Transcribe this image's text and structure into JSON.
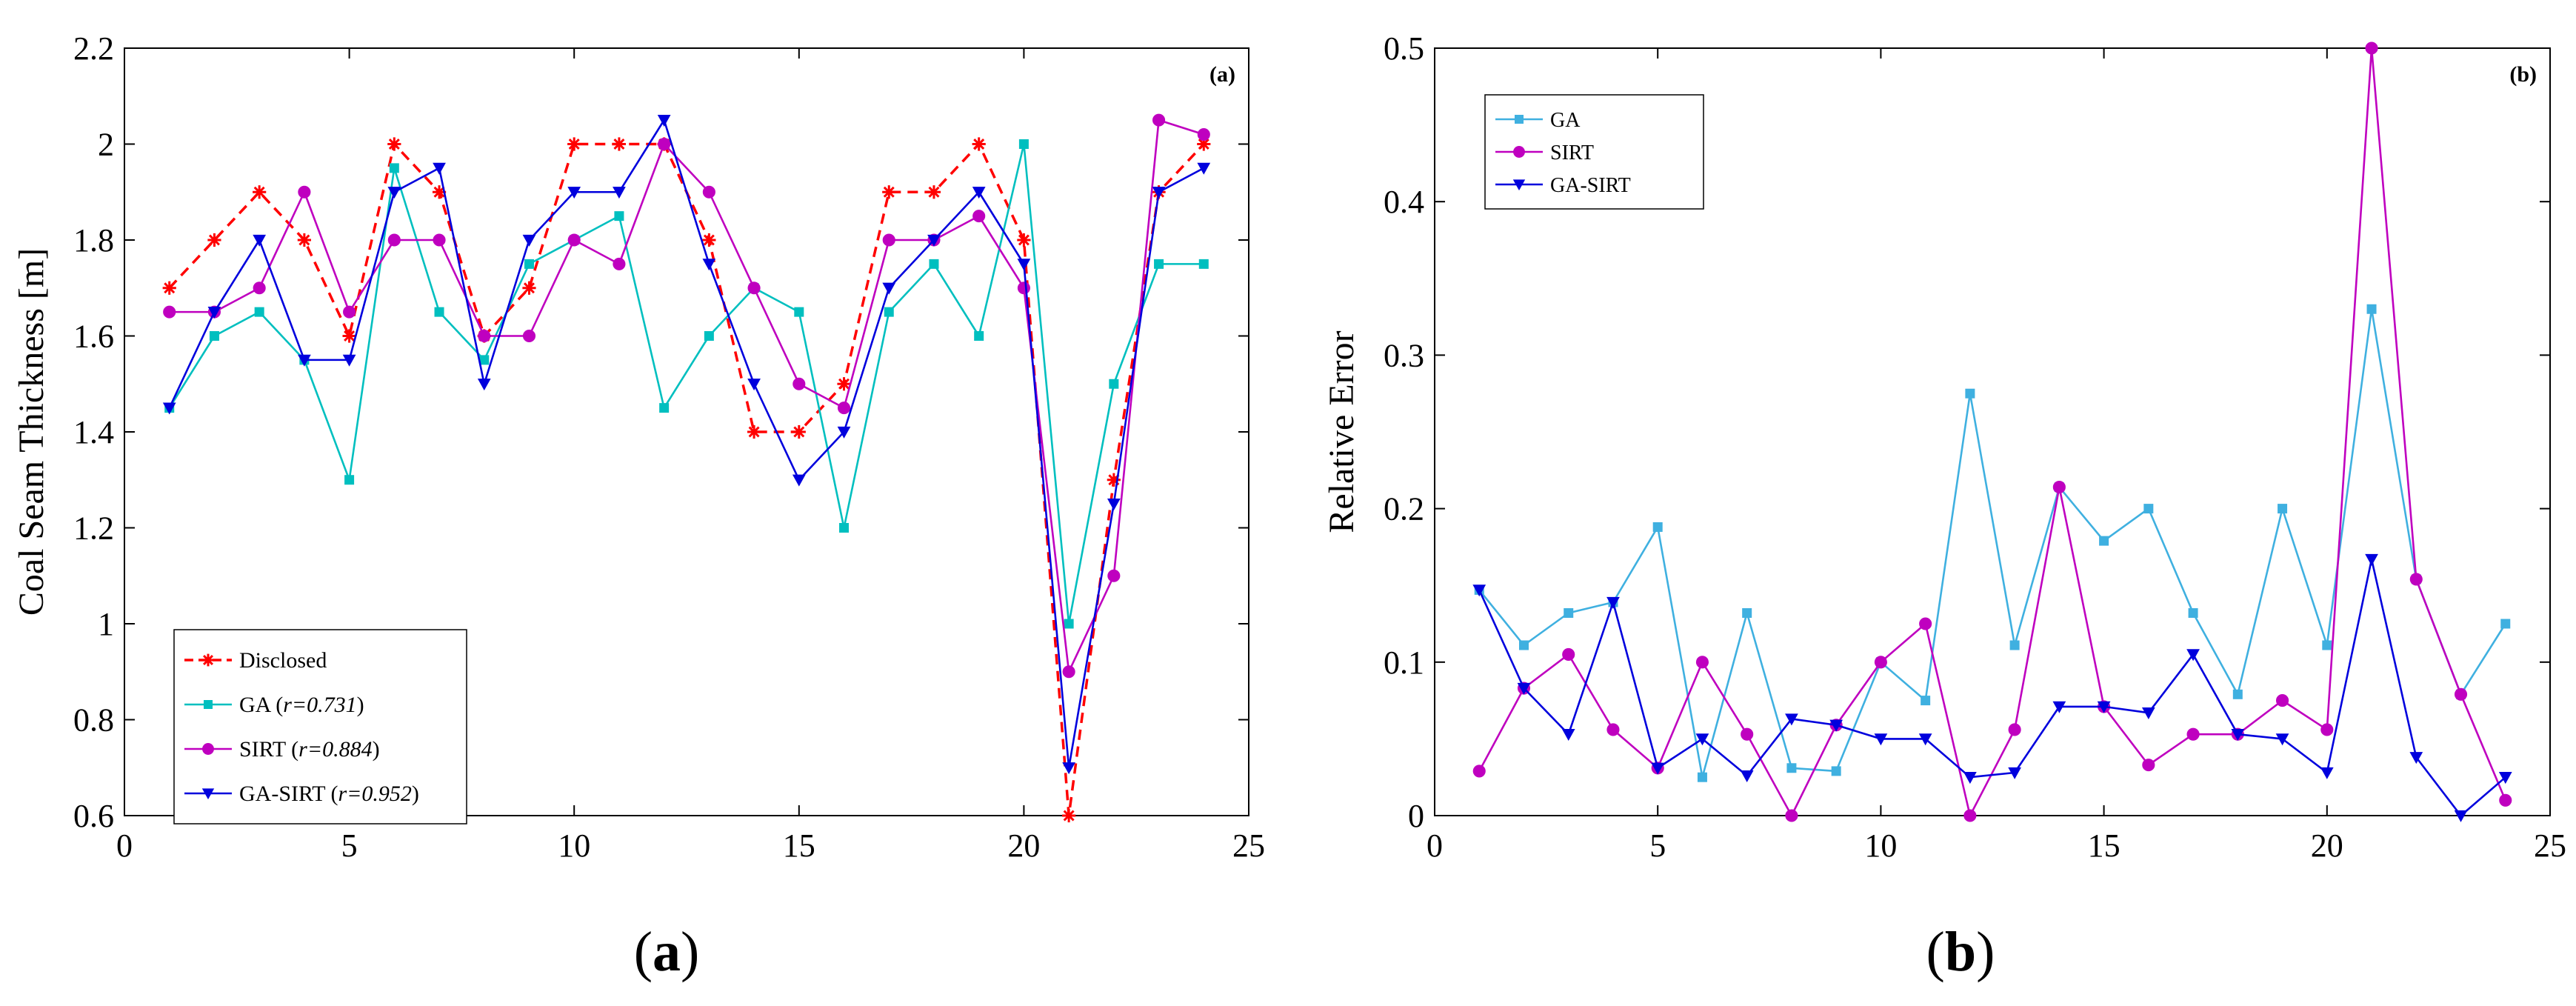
{
  "chart_data": [
    {
      "type": "line",
      "panel_tag": "(a)",
      "caption_letter": "a",
      "caption_open": "(",
      "caption_close": ")",
      "xlabel": "",
      "ylabel": "Coal Seam Thickness [m]",
      "xlim": [
        0,
        25
      ],
      "ylim": [
        0.6,
        2.2
      ],
      "xticks": [
        0,
        5,
        10,
        15,
        20,
        25
      ],
      "yticks": [
        0.6,
        0.8,
        1,
        1.2,
        1.4,
        1.6,
        1.8,
        2,
        2.2
      ],
      "ytick_labels": [
        "0.6",
        "0.8",
        "1",
        "1.2",
        "1.4",
        "1.6",
        "1.8",
        "2",
        "2.2"
      ],
      "grid": false,
      "legend_position": "bottom-left",
      "x": [
        1,
        2,
        3,
        4,
        5,
        6,
        7,
        8,
        9,
        10,
        11,
        12,
        13,
        14,
        15,
        16,
        17,
        18,
        19,
        20,
        21,
        22,
        23,
        24
      ],
      "series": [
        {
          "name": "Disclosed",
          "r_text": "",
          "color": "#ff0000",
          "dashed": true,
          "marker": "star",
          "values": [
            1.7,
            1.8,
            1.9,
            1.8,
            1.6,
            2.0,
            1.9,
            1.6,
            1.7,
            2.0,
            2.0,
            2.0,
            1.8,
            1.4,
            1.4,
            1.5,
            1.9,
            1.9,
            2.0,
            1.8,
            0.6,
            1.3,
            1.9,
            2.0
          ]
        },
        {
          "name": "GA",
          "r_text": "r=0.731",
          "color": "#00bfbf",
          "dashed": false,
          "marker": "square",
          "values": [
            1.45,
            1.6,
            1.65,
            1.55,
            1.3,
            1.95,
            1.65,
            1.55,
            1.75,
            1.8,
            1.85,
            1.45,
            1.6,
            1.7,
            1.65,
            1.2,
            1.65,
            1.75,
            1.6,
            2.0,
            1.0,
            1.5,
            1.75,
            1.75
          ]
        },
        {
          "name": "SIRT",
          "r_text": "r=0.884",
          "color": "#bf00bf",
          "dashed": false,
          "marker": "circle",
          "values": [
            1.65,
            1.65,
            1.7,
            1.9,
            1.65,
            1.8,
            1.8,
            1.6,
            1.6,
            1.8,
            1.75,
            2.0,
            1.9,
            1.7,
            1.5,
            1.45,
            1.8,
            1.8,
            1.85,
            1.7,
            0.9,
            1.1,
            2.05,
            2.02
          ]
        },
        {
          "name": "GA-SIRT",
          "r_text": "r=0.952",
          "color": "#0000dd",
          "dashed": false,
          "marker": "triangle-down",
          "values": [
            1.45,
            1.65,
            1.8,
            1.55,
            1.55,
            1.9,
            1.95,
            1.5,
            1.8,
            1.9,
            1.9,
            2.05,
            1.75,
            1.5,
            1.3,
            1.4,
            1.7,
            1.8,
            1.9,
            1.75,
            0.7,
            1.25,
            1.9,
            1.95
          ]
        }
      ]
    },
    {
      "type": "line",
      "panel_tag": "(b)",
      "caption_letter": "b",
      "caption_open": "(",
      "caption_close": ")",
      "xlabel": "",
      "ylabel": "Relative Error",
      "xlim": [
        0,
        25
      ],
      "ylim": [
        0,
        0.5
      ],
      "xticks": [
        0,
        5,
        10,
        15,
        20,
        25
      ],
      "yticks": [
        0,
        0.1,
        0.2,
        0.3,
        0.4,
        0.5
      ],
      "ytick_labels": [
        "0",
        "0.1",
        "0.2",
        "0.3",
        "0.4",
        "0.5"
      ],
      "grid": false,
      "legend_position": "top-left",
      "x": [
        1,
        2,
        3,
        4,
        5,
        6,
        7,
        8,
        9,
        10,
        11,
        12,
        13,
        14,
        15,
        16,
        17,
        18,
        19,
        20,
        21,
        22,
        23,
        24
      ],
      "series": [
        {
          "name": "GA",
          "r_text": "",
          "color": "#3fb0e0",
          "dashed": false,
          "marker": "square",
          "values": [
            0.147,
            0.111,
            0.132,
            0.139,
            0.188,
            0.025,
            0.132,
            0.031,
            0.029,
            0.1,
            0.075,
            0.275,
            0.111,
            0.214,
            0.179,
            0.2,
            0.132,
            0.079,
            0.2,
            0.111,
            0.33,
            0.154,
            0.079,
            0.125
          ]
        },
        {
          "name": "SIRT",
          "r_text": "",
          "color": "#bf00bf",
          "dashed": false,
          "marker": "circle",
          "values": [
            0.029,
            0.083,
            0.105,
            0.056,
            0.031,
            0.1,
            0.053,
            0.0,
            0.059,
            0.1,
            0.125,
            0.0,
            0.056,
            0.214,
            0.071,
            0.033,
            0.053,
            0.053,
            0.075,
            0.056,
            0.5,
            0.154,
            0.079,
            0.01
          ]
        },
        {
          "name": "GA-SIRT",
          "r_text": "",
          "color": "#0000dd",
          "dashed": false,
          "marker": "triangle-down",
          "values": [
            0.147,
            0.083,
            0.053,
            0.139,
            0.031,
            0.05,
            0.026,
            0.063,
            0.059,
            0.05,
            0.05,
            0.025,
            0.028,
            0.071,
            0.071,
            0.067,
            0.105,
            0.053,
            0.05,
            0.028,
            0.167,
            0.038,
            0.0,
            0.025
          ]
        }
      ]
    }
  ]
}
